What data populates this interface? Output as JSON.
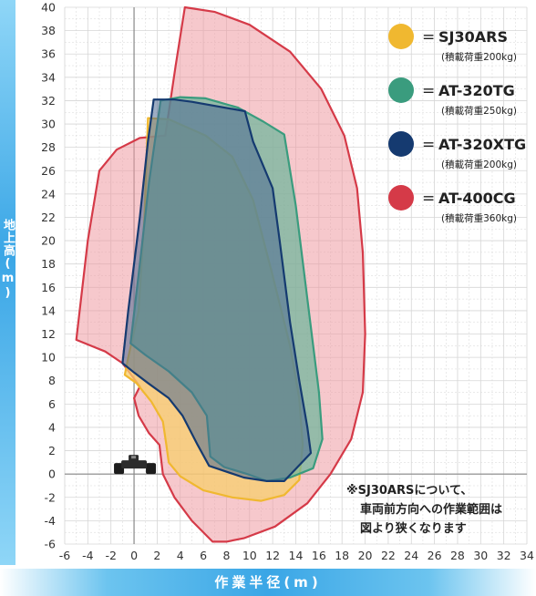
{
  "chart_data": {
    "type": "area",
    "title": "",
    "xlabel": "作業半径(m)",
    "ylabel": "地上高(m)",
    "xlim": [
      -6,
      34
    ],
    "ylim": [
      -6,
      40
    ],
    "x_ticks": [
      -6,
      -4,
      -2,
      0,
      2,
      4,
      6,
      8,
      10,
      12,
      14,
      16,
      18,
      20,
      22,
      24,
      26,
      28,
      30,
      32,
      34
    ],
    "y_ticks": [
      40,
      38,
      36,
      34,
      32,
      30,
      28,
      26,
      24,
      22,
      20,
      18,
      16,
      14,
      12,
      10,
      8,
      6,
      4,
      2,
      0,
      -2,
      -4,
      -6
    ],
    "grid": true,
    "legend_position": "top-right",
    "series": [
      {
        "name": "SJ30ARS",
        "sub": "(積載荷重200kg)",
        "color": "#f0b830",
        "fill": "#f7cf6e",
        "points": [
          [
            1.2,
            30.5
          ],
          [
            3.0,
            30.4
          ],
          [
            6.2,
            29.0
          ],
          [
            8.5,
            27.2
          ],
          [
            10.3,
            23.5
          ],
          [
            12.0,
            17.0
          ],
          [
            13.5,
            11.0
          ],
          [
            14.3,
            6.5
          ],
          [
            14.6,
            2.5
          ],
          [
            14.3,
            -0.5
          ],
          [
            13.0,
            -1.8
          ],
          [
            11.0,
            -2.3
          ],
          [
            8.5,
            -2.0
          ],
          [
            6.0,
            -1.4
          ],
          [
            4.0,
            -0.2
          ],
          [
            3.0,
            1.0
          ],
          [
            2.8,
            2.5
          ],
          [
            2.5,
            4.5
          ],
          [
            1.5,
            6.2
          ],
          [
            0.2,
            7.8
          ],
          [
            -0.8,
            8.5
          ],
          [
            -0.5,
            10.0
          ],
          [
            0.4,
            14.0
          ],
          [
            0.9,
            22.0
          ]
        ]
      },
      {
        "name": "AT-320TG",
        "sub": "(積載荷重250kg)",
        "color": "#3a9c7e",
        "fill": "#6fb69b",
        "points": [
          [
            2.3,
            32.0
          ],
          [
            4.0,
            32.3
          ],
          [
            6.2,
            32.2
          ],
          [
            9.0,
            31.4
          ],
          [
            11.2,
            30.2
          ],
          [
            13.0,
            29.1
          ],
          [
            14.0,
            23.0
          ],
          [
            15.0,
            15.0
          ],
          [
            16.0,
            7.0
          ],
          [
            16.3,
            3.0
          ],
          [
            15.5,
            0.5
          ],
          [
            13.5,
            -0.3
          ],
          [
            11.5,
            -0.6
          ],
          [
            9.8,
            0.0
          ],
          [
            7.8,
            0.6
          ],
          [
            6.6,
            1.5
          ],
          [
            6.3,
            5.0
          ],
          [
            5.0,
            7.0
          ],
          [
            3.0,
            8.8
          ],
          [
            1.0,
            10.2
          ],
          [
            -0.3,
            11.2
          ],
          [
            0.5,
            18.0
          ],
          [
            1.3,
            25.0
          ]
        ]
      },
      {
        "name": "AT-320XTG",
        "sub": "(積載荷重200kg)",
        "color": "#153a70",
        "fill": "#4c6a92",
        "points": [
          [
            1.7,
            32.1
          ],
          [
            3.5,
            32.1
          ],
          [
            5.0,
            31.9
          ],
          [
            9.6,
            31.1
          ],
          [
            10.3,
            28.5
          ],
          [
            12.0,
            24.5
          ],
          [
            12.6,
            20.0
          ],
          [
            13.5,
            13.0
          ],
          [
            14.3,
            8.0
          ],
          [
            15.0,
            4.0
          ],
          [
            15.3,
            1.8
          ],
          [
            13.0,
            -0.6
          ],
          [
            11.5,
            -0.6
          ],
          [
            9.5,
            -0.3
          ],
          [
            6.5,
            0.7
          ],
          [
            5.5,
            2.5
          ],
          [
            4.2,
            5.0
          ],
          [
            3.0,
            6.5
          ],
          [
            1.2,
            7.8
          ],
          [
            0.0,
            8.7
          ],
          [
            -1.0,
            9.5
          ],
          [
            -0.5,
            14.0
          ],
          [
            0.5,
            22.0
          ],
          [
            1.2,
            28.5
          ]
        ]
      },
      {
        "name": "AT-400CG",
        "sub": "(積載荷重360kg)",
        "color": "#d53a48",
        "fill": "#ee9aa2",
        "points": [
          [
            4.4,
            40.0
          ],
          [
            7.0,
            39.6
          ],
          [
            10.0,
            38.5
          ],
          [
            13.5,
            36.2
          ],
          [
            16.2,
            33.0
          ],
          [
            18.2,
            29.0
          ],
          [
            19.3,
            24.5
          ],
          [
            19.8,
            19.0
          ],
          [
            20.0,
            12.0
          ],
          [
            19.8,
            7.0
          ],
          [
            18.8,
            3.0
          ],
          [
            17.0,
            0.0
          ],
          [
            15.0,
            -2.5
          ],
          [
            12.2,
            -4.5
          ],
          [
            9.5,
            -5.5
          ],
          [
            8.0,
            -5.8
          ],
          [
            6.8,
            -5.8
          ],
          [
            5.0,
            -4.0
          ],
          [
            3.5,
            -2.0
          ],
          [
            2.5,
            0.0
          ],
          [
            2.2,
            2.5
          ],
          [
            1.3,
            3.5
          ],
          [
            0.4,
            5.0
          ],
          [
            0.0,
            6.5
          ],
          [
            0.5,
            7.5
          ],
          [
            -1.0,
            9.5
          ],
          [
            -2.5,
            10.5
          ],
          [
            -5.0,
            11.5
          ],
          [
            -4.0,
            20.0
          ],
          [
            -3.0,
            26.0
          ],
          [
            -1.5,
            27.8
          ],
          [
            0.5,
            28.8
          ],
          [
            2.7,
            29.0
          ],
          [
            3.6,
            35.0
          ]
        ]
      }
    ],
    "note_lines": [
      "※SJ30ARSについて、",
      "車両前方向への作業範囲は",
      "図より狭くなります"
    ]
  },
  "colors": {
    "axis_band": "#3aa6e6",
    "grid": "#d6d6d6",
    "axis": "#888888"
  },
  "icons": {
    "vehicle": "crawler-vehicle-icon"
  }
}
